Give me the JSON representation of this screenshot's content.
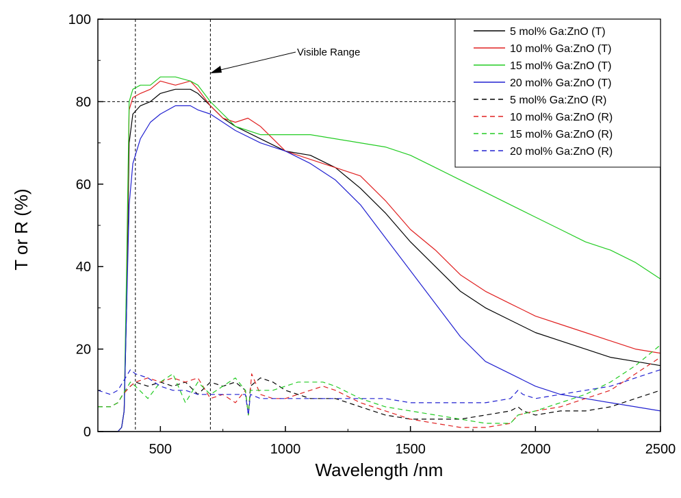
{
  "chart_data": {
    "type": "line",
    "xlabel": "Wavelength /nm",
    "ylabel": "T or R (%)",
    "xlim": [
      250,
      2500
    ],
    "ylim": [
      0,
      100
    ],
    "xticks": [
      500,
      1000,
      1500,
      2000,
      2500
    ],
    "xtick_labels": [
      "500",
      "1000",
      "1500",
      "2000",
      "2500"
    ],
    "yticks": [
      0,
      20,
      40,
      60,
      80,
      100
    ],
    "ytick_labels": [
      "0",
      "20",
      "40",
      "60",
      "80",
      "100"
    ],
    "grid": false,
    "legend_position": "top-right",
    "annotation": {
      "text": "Visible Range",
      "arrow_target": [
        700,
        87
      ]
    },
    "reference_lines": {
      "vertical_x": [
        400,
        700
      ],
      "horizontal_y": [
        80
      ]
    },
    "series": [
      {
        "name": "5 mol% Ga:ZnO (T)",
        "color": "#000000",
        "dash": "solid",
        "x": [
          250,
          300,
          330,
          345,
          355,
          365,
          375,
          390,
          420,
          460,
          500,
          560,
          620,
          650,
          700,
          750,
          800,
          900,
          1000,
          1100,
          1200,
          1300,
          1400,
          1500,
          1600,
          1700,
          1800,
          1900,
          2000,
          2100,
          2200,
          2300,
          2400,
          2500
        ],
        "y": [
          0,
          0,
          0,
          1,
          5,
          30,
          70,
          77,
          79,
          80,
          82,
          83,
          83,
          82,
          79,
          76,
          74,
          71,
          68,
          67,
          64,
          59,
          53,
          46,
          40,
          34,
          30,
          27,
          24,
          22,
          20,
          18,
          17,
          16
        ]
      },
      {
        "name": "10 mol% Ga:ZnO (T)",
        "color": "#e02020",
        "dash": "solid",
        "x": [
          250,
          300,
          330,
          345,
          355,
          365,
          375,
          390,
          420,
          460,
          500,
          560,
          620,
          650,
          700,
          750,
          800,
          850,
          900,
          1000,
          1100,
          1200,
          1300,
          1400,
          1500,
          1600,
          1700,
          1800,
          1900,
          2000,
          2100,
          2200,
          2300,
          2400,
          2500
        ],
        "y": [
          0,
          0,
          0,
          1,
          5,
          35,
          78,
          81,
          82,
          83,
          85,
          84,
          85,
          83,
          79,
          76,
          75,
          76,
          74,
          68,
          66,
          64,
          62,
          56,
          49,
          44,
          38,
          34,
          31,
          28,
          26,
          24,
          22,
          20,
          19
        ]
      },
      {
        "name": "15 mol% Ga:ZnO (T)",
        "color": "#22cc22",
        "dash": "solid",
        "x": [
          250,
          300,
          330,
          345,
          355,
          365,
          375,
          390,
          420,
          460,
          500,
          560,
          620,
          650,
          700,
          750,
          800,
          900,
          1000,
          1100,
          1200,
          1300,
          1400,
          1500,
          1600,
          1700,
          1800,
          1900,
          2000,
          2100,
          2200,
          2300,
          2400,
          2500
        ],
        "y": [
          0,
          0,
          0,
          1,
          5,
          40,
          80,
          83,
          84,
          84,
          86,
          86,
          85,
          84,
          80,
          77,
          74,
          72,
          72,
          72,
          71,
          70,
          69,
          67,
          64,
          61,
          58,
          55,
          52,
          49,
          46,
          44,
          41,
          37
        ]
      },
      {
        "name": "20 mol% Ga:ZnO (T)",
        "color": "#2020d0",
        "dash": "solid",
        "x": [
          250,
          300,
          330,
          345,
          355,
          365,
          375,
          390,
          420,
          460,
          500,
          560,
          620,
          650,
          700,
          750,
          800,
          900,
          1000,
          1100,
          1200,
          1300,
          1400,
          1500,
          1600,
          1700,
          1800,
          1900,
          2000,
          2100,
          2200,
          2300,
          2400,
          2500
        ],
        "y": [
          0,
          0,
          0,
          1,
          5,
          30,
          55,
          65,
          71,
          75,
          77,
          79,
          79,
          78,
          77,
          75,
          73,
          70,
          68,
          65,
          61,
          55,
          47,
          39,
          31,
          23,
          17,
          14,
          11,
          9,
          8,
          7,
          6,
          5
        ]
      },
      {
        "name": "5 mol% Ga:ZnO (R)",
        "color": "#000000",
        "dash": "dashed",
        "x": [
          250,
          300,
          330,
          350,
          380,
          400,
          450,
          500,
          550,
          600,
          650,
          700,
          750,
          800,
          840,
          852,
          860,
          900,
          950,
          1000,
          1100,
          1200,
          1300,
          1400,
          1500,
          1600,
          1700,
          1800,
          1900,
          1930,
          1950,
          2000,
          2100,
          2200,
          2300,
          2400,
          2500
        ],
        "y": [
          6,
          6,
          7,
          9,
          11,
          12,
          11,
          12,
          11,
          12,
          9,
          12,
          11,
          12,
          10,
          4,
          11,
          13,
          12,
          10,
          8,
          8,
          6,
          4,
          3,
          3,
          3,
          4,
          5,
          6,
          5,
          4,
          5,
          5,
          6,
          8,
          10
        ]
      },
      {
        "name": "10 mol% Ga:ZnO (R)",
        "color": "#e02020",
        "dash": "dashed",
        "x": [
          250,
          300,
          330,
          350,
          380,
          400,
          450,
          500,
          550,
          600,
          650,
          700,
          750,
          800,
          840,
          852,
          865,
          900,
          950,
          1000,
          1100,
          1150,
          1200,
          1300,
          1400,
          1500,
          1600,
          1700,
          1800,
          1900,
          1930,
          2000,
          2100,
          2200,
          2300,
          2400,
          2500
        ],
        "y": [
          6,
          6,
          7,
          9,
          11,
          12,
          13,
          12,
          13,
          12,
          13,
          8,
          9,
          7,
          10,
          4,
          14,
          9,
          8,
          8,
          10,
          11,
          10,
          7,
          5,
          3,
          2,
          1,
          1,
          2,
          4,
          5,
          6,
          8,
          10,
          14,
          18
        ]
      },
      {
        "name": "15 mol% Ga:ZnO (R)",
        "color": "#22cc22",
        "dash": "dashed",
        "x": [
          250,
          300,
          330,
          350,
          380,
          400,
          450,
          500,
          550,
          600,
          650,
          700,
          750,
          800,
          840,
          852,
          860,
          900,
          950,
          1000,
          1050,
          1100,
          1150,
          1200,
          1300,
          1400,
          1500,
          1600,
          1700,
          1800,
          1900,
          1930,
          2000,
          2100,
          2200,
          2300,
          2400,
          2500
        ],
        "y": [
          6,
          6,
          7,
          9,
          12,
          11,
          8,
          12,
          14,
          7,
          12,
          9,
          11,
          13,
          10,
          4,
          10,
          10,
          10,
          11,
          12,
          12,
          12,
          11,
          8,
          6,
          5,
          4,
          3,
          2,
          2,
          4,
          5,
          7,
          9,
          12,
          16,
          21
        ]
      },
      {
        "name": "20 mol% Ga:ZnO (R)",
        "color": "#2020d0",
        "dash": "dashed",
        "x": [
          250,
          300,
          330,
          350,
          380,
          400,
          450,
          500,
          550,
          600,
          650,
          700,
          750,
          800,
          840,
          852,
          860,
          900,
          1000,
          1100,
          1200,
          1300,
          1400,
          1500,
          1600,
          1700,
          1800,
          1900,
          1930,
          1950,
          2000,
          2100,
          2200,
          2300,
          2400,
          2500
        ],
        "y": [
          10,
          9,
          10,
          12,
          15,
          14,
          13,
          11,
          10,
          10,
          9,
          9,
          9,
          9,
          9,
          4,
          9,
          8,
          8,
          8,
          8,
          8,
          8,
          7,
          7,
          7,
          7,
          8,
          10,
          9,
          8,
          9,
          10,
          11,
          13,
          15
        ]
      }
    ]
  }
}
